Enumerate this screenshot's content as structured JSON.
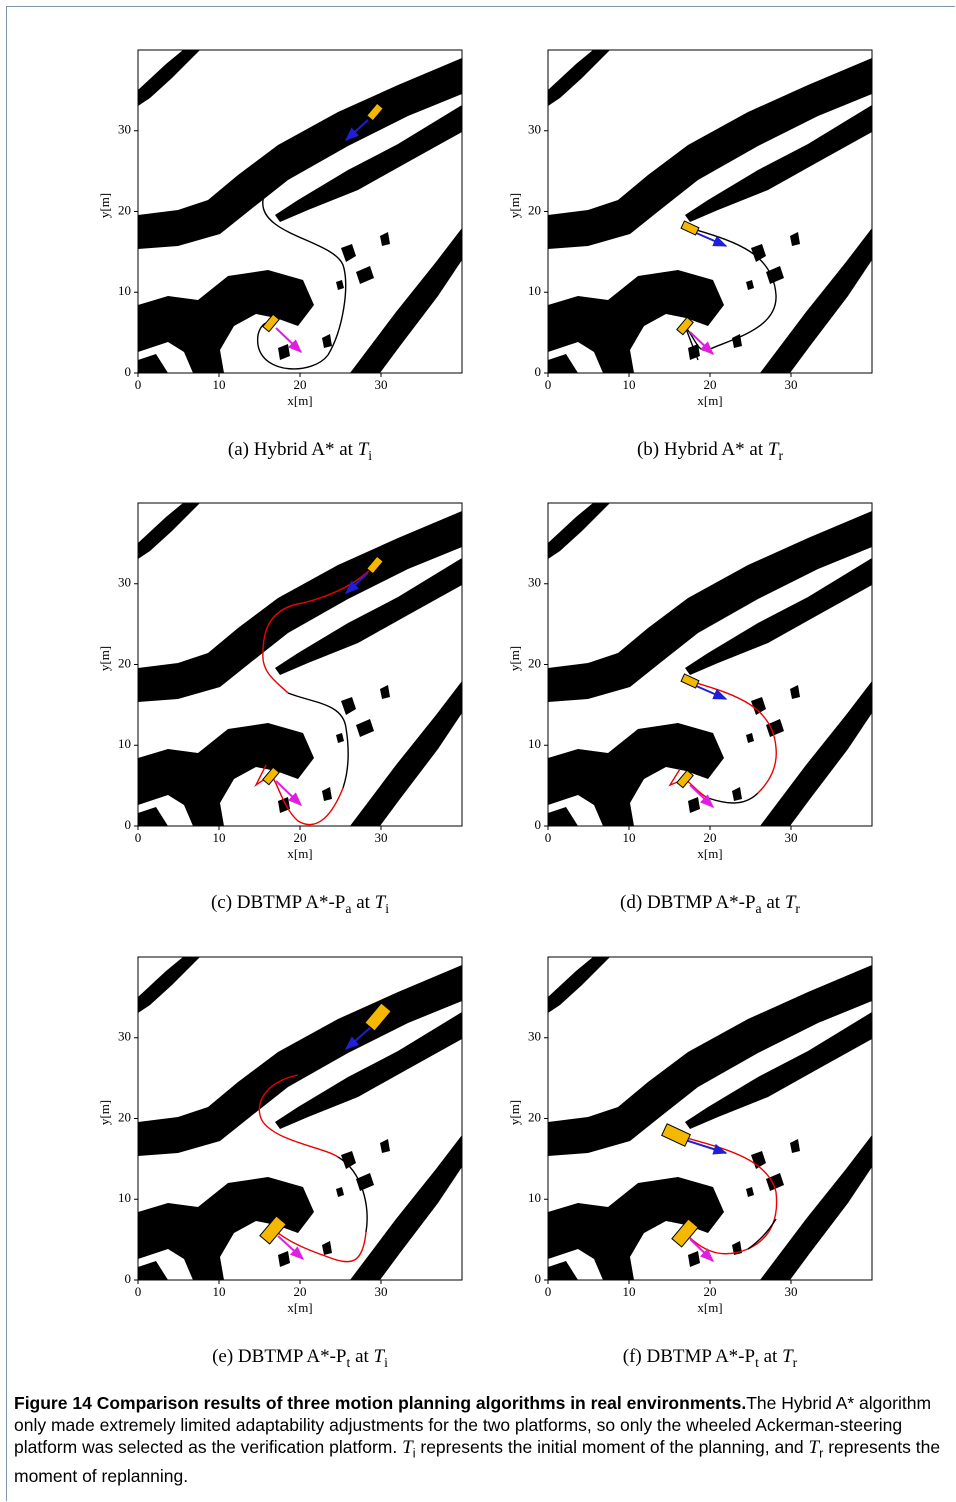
{
  "axes": {
    "xlabel": "x[m]",
    "ylabel": "y[m]",
    "xlim": [
      0,
      40
    ],
    "ylim": [
      0,
      40
    ],
    "xticks": [
      0,
      10,
      20,
      30
    ],
    "yticks": [
      0,
      10,
      20,
      30
    ]
  },
  "panels": [
    {
      "label": "(a)",
      "method": "Hybrid A*",
      "at": "at",
      "symbol": "T",
      "symbol_sub": "i"
    },
    {
      "label": "(b)",
      "method": "Hybrid A*",
      "at": "at",
      "symbol": "T",
      "symbol_sub": "r"
    },
    {
      "label": "(c)",
      "method": "DBTMP A*-P",
      "method_sub": "a",
      "at": "at",
      "symbol": "T",
      "symbol_sub": "i"
    },
    {
      "label": "(d)",
      "method": "DBTMP A*-P",
      "method_sub": "a",
      "at": "at",
      "symbol": "T",
      "symbol_sub": "r"
    },
    {
      "label": "(e)",
      "method": "DBTMP A*-P",
      "method_sub": "t",
      "at": "at",
      "symbol": "T",
      "symbol_sub": "i"
    },
    {
      "label": "(f)",
      "method": "DBTMP A*-P",
      "method_sub": "t",
      "at": "at",
      "symbol": "T",
      "symbol_sub": "r"
    }
  ],
  "figure": {
    "label": "Figure 14",
    "title": "Comparison results of three motion planning algorithms in real environments.",
    "body": "The Hybrid A* algorithm only made extremely limited adaptability adjustments for the two platforms, so only the wheeled Ackerman-steering platform was selected as the verification platform.",
    "def1_symbol": "T",
    "def1_sub": "i",
    "def1_text": "represents the initial moment of the planning, and",
    "def2_symbol": "T",
    "def2_sub": "r",
    "def2_text": "represents the moment of replanning."
  }
}
